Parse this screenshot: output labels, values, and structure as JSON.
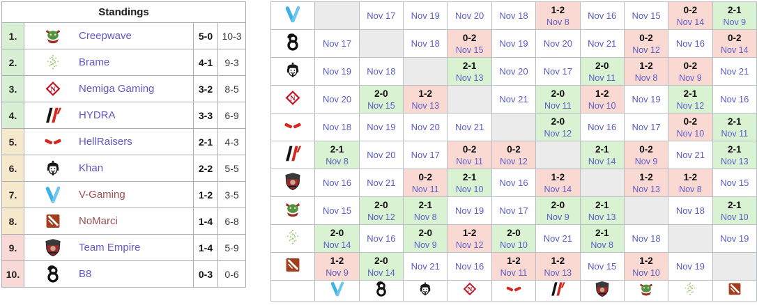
{
  "colors": {
    "win_bg": "#d9f2d1",
    "loss_bg": "#fbd9d3",
    "self_bg": "#ebebeb",
    "zone_up": "#d9efd4",
    "zone_mid": "#f6e8ca",
    "zone_down": "#f8d9d6",
    "link_purple": "#6058c6",
    "link_red": "#a04e52",
    "date_link": "#5a5cc9"
  },
  "teams": {
    "v-gaming": {
      "name": "V-Gaming",
      "icon": "v-gaming-icon",
      "link_style": "red"
    },
    "b8": {
      "name": "B8",
      "icon": "b8-icon",
      "link_style": "purple"
    },
    "khan": {
      "name": "Khan",
      "icon": "khan-icon",
      "link_style": "purple"
    },
    "nemiga": {
      "name": "Nemiga Gaming",
      "icon": "nemiga-icon",
      "link_style": "purple"
    },
    "hellraisers": {
      "name": "HellRaisers",
      "icon": "hellraisers-icon",
      "link_style": "purple"
    },
    "hydra": {
      "name": "HYDRA",
      "icon": "hydra-icon",
      "link_style": "purple"
    },
    "team-empire": {
      "name": "Team Empire",
      "icon": "team-empire-icon",
      "link_style": "purple"
    },
    "creepwave": {
      "name": "Creepwave",
      "icon": "creepwave-icon",
      "link_style": "purple"
    },
    "brame": {
      "name": "Brame",
      "icon": "brame-icon",
      "link_style": "purple"
    },
    "nomarci": {
      "name": "NoMarci",
      "icon": "nomarci-icon",
      "link_style": "red"
    }
  },
  "standings": {
    "title": "Standings",
    "rows": [
      {
        "place": "1.",
        "team": "creepwave",
        "record": "5-0",
        "games": "10-3",
        "zone": "up"
      },
      {
        "place": "2.",
        "team": "brame",
        "record": "4-1",
        "games": "9-3",
        "zone": "up"
      },
      {
        "place": "3.",
        "team": "nemiga",
        "record": "3-2",
        "games": "8-5",
        "zone": "up"
      },
      {
        "place": "4.",
        "team": "hydra",
        "record": "3-3",
        "games": "6-9",
        "zone": "up"
      },
      {
        "place": "5.",
        "team": "hellraisers",
        "record": "2-1",
        "games": "4-3",
        "zone": "mid"
      },
      {
        "place": "6.",
        "team": "khan",
        "record": "2-2",
        "games": "5-5",
        "zone": "mid"
      },
      {
        "place": "7.",
        "team": "v-gaming",
        "record": "1-2",
        "games": "3-5",
        "zone": "mid"
      },
      {
        "place": "8.",
        "team": "nomarci",
        "record": "1-4",
        "games": "6-8",
        "zone": "mid"
      },
      {
        "place": "9.",
        "team": "team-empire",
        "record": "1-4",
        "games": "5-9",
        "zone": "down"
      },
      {
        "place": "10.",
        "team": "b8",
        "record": "0-3",
        "games": "0-6",
        "zone": "down"
      }
    ]
  },
  "crosstable": {
    "rows": [
      {
        "team": "v-gaming",
        "cells": [
          {
            "type": "self"
          },
          {
            "type": "scheduled",
            "date": "Nov 17"
          },
          {
            "type": "scheduled",
            "date": "Nov 19"
          },
          {
            "type": "scheduled",
            "date": "Nov 20"
          },
          {
            "type": "scheduled",
            "date": "Nov 18"
          },
          {
            "type": "loss",
            "score": "1-2",
            "date": "Nov 8"
          },
          {
            "type": "scheduled",
            "date": "Nov 16"
          },
          {
            "type": "scheduled",
            "date": "Nov 15"
          },
          {
            "type": "loss",
            "score": "0-2",
            "date": "Nov 14"
          },
          {
            "type": "win",
            "score": "2-1",
            "date": "Nov 9"
          }
        ]
      },
      {
        "team": "b8",
        "cells": [
          {
            "type": "scheduled",
            "date": "Nov 17"
          },
          {
            "type": "self"
          },
          {
            "type": "scheduled",
            "date": "Nov 18"
          },
          {
            "type": "loss",
            "score": "0-2",
            "date": "Nov 15"
          },
          {
            "type": "scheduled",
            "date": "Nov 19"
          },
          {
            "type": "scheduled",
            "date": "Nov 20"
          },
          {
            "type": "scheduled",
            "date": "Nov 21"
          },
          {
            "type": "loss",
            "score": "0-2",
            "date": "Nov 12"
          },
          {
            "type": "scheduled",
            "date": "Nov 16"
          },
          {
            "type": "loss",
            "score": "0-2",
            "date": "Nov 14"
          }
        ]
      },
      {
        "team": "khan",
        "cells": [
          {
            "type": "scheduled",
            "date": "Nov 19"
          },
          {
            "type": "scheduled",
            "date": "Nov 18"
          },
          {
            "type": "self"
          },
          {
            "type": "win",
            "score": "2-1",
            "date": "Nov 13"
          },
          {
            "type": "scheduled",
            "date": "Nov 20"
          },
          {
            "type": "scheduled",
            "date": "Nov 17"
          },
          {
            "type": "win",
            "score": "2-0",
            "date": "Nov 11"
          },
          {
            "type": "loss",
            "score": "1-2",
            "date": "Nov 8"
          },
          {
            "type": "loss",
            "score": "0-2",
            "date": "Nov 9"
          },
          {
            "type": "scheduled",
            "date": "Nov 21"
          }
        ]
      },
      {
        "team": "nemiga",
        "cells": [
          {
            "type": "scheduled",
            "date": "Nov 20"
          },
          {
            "type": "win",
            "score": "2-0",
            "date": "Nov 15"
          },
          {
            "type": "loss",
            "score": "1-2",
            "date": "Nov 13"
          },
          {
            "type": "self"
          },
          {
            "type": "scheduled",
            "date": "Nov 21"
          },
          {
            "type": "win",
            "score": "2-0",
            "date": "Nov 11"
          },
          {
            "type": "loss",
            "score": "1-2",
            "date": "Nov 10"
          },
          {
            "type": "scheduled",
            "date": "Nov 19"
          },
          {
            "type": "win",
            "score": "2-1",
            "date": "Nov 12"
          },
          {
            "type": "scheduled",
            "date": "Nov 16"
          }
        ]
      },
      {
        "team": "hellraisers",
        "cells": [
          {
            "type": "scheduled",
            "date": "Nov 18"
          },
          {
            "type": "scheduled",
            "date": "Nov 19"
          },
          {
            "type": "scheduled",
            "date": "Nov 20"
          },
          {
            "type": "scheduled",
            "date": "Nov 21"
          },
          {
            "type": "self"
          },
          {
            "type": "win",
            "score": "2-0",
            "date": "Nov 12"
          },
          {
            "type": "scheduled",
            "date": "Nov 16"
          },
          {
            "type": "scheduled",
            "date": "Nov 17"
          },
          {
            "type": "loss",
            "score": "0-2",
            "date": "Nov 10"
          },
          {
            "type": "win",
            "score": "2-1",
            "date": "Nov 11"
          }
        ]
      },
      {
        "team": "hydra",
        "cells": [
          {
            "type": "win",
            "score": "2-1",
            "date": "Nov 8"
          },
          {
            "type": "scheduled",
            "date": "Nov 20"
          },
          {
            "type": "scheduled",
            "date": "Nov 17"
          },
          {
            "type": "loss",
            "score": "0-2",
            "date": "Nov 11"
          },
          {
            "type": "loss",
            "score": "0-2",
            "date": "Nov 12"
          },
          {
            "type": "self"
          },
          {
            "type": "win",
            "score": "2-1",
            "date": "Nov 14"
          },
          {
            "type": "loss",
            "score": "0-2",
            "date": "Nov 9"
          },
          {
            "type": "scheduled",
            "date": "Nov 21"
          },
          {
            "type": "win",
            "score": "2-1",
            "date": "Nov 13"
          }
        ]
      },
      {
        "team": "team-empire",
        "cells": [
          {
            "type": "scheduled",
            "date": "Nov 16"
          },
          {
            "type": "scheduled",
            "date": "Nov 21"
          },
          {
            "type": "loss",
            "score": "0-2",
            "date": "Nov 11"
          },
          {
            "type": "win",
            "score": "2-1",
            "date": "Nov 10"
          },
          {
            "type": "scheduled",
            "date": "Nov 16"
          },
          {
            "type": "loss",
            "score": "1-2",
            "date": "Nov 14"
          },
          {
            "type": "self"
          },
          {
            "type": "loss",
            "score": "1-2",
            "date": "Nov 13"
          },
          {
            "type": "loss",
            "score": "1-2",
            "date": "Nov 8"
          },
          {
            "type": "scheduled",
            "date": "Nov 15"
          }
        ]
      },
      {
        "team": "creepwave",
        "cells": [
          {
            "type": "scheduled",
            "date": "Nov 15"
          },
          {
            "type": "win",
            "score": "2-0",
            "date": "Nov 12"
          },
          {
            "type": "win",
            "score": "2-1",
            "date": "Nov 8"
          },
          {
            "type": "scheduled",
            "date": "Nov 19"
          },
          {
            "type": "scheduled",
            "date": "Nov 17"
          },
          {
            "type": "win",
            "score": "2-0",
            "date": "Nov 9"
          },
          {
            "type": "win",
            "score": "2-1",
            "date": "Nov 13"
          },
          {
            "type": "self"
          },
          {
            "type": "scheduled",
            "date": "Nov 18"
          },
          {
            "type": "win",
            "score": "2-1",
            "date": "Nov 10"
          }
        ]
      },
      {
        "team": "brame",
        "cells": [
          {
            "type": "win",
            "score": "2-0",
            "date": "Nov 14"
          },
          {
            "type": "scheduled",
            "date": "Nov 16"
          },
          {
            "type": "win",
            "score": "2-0",
            "date": "Nov 9"
          },
          {
            "type": "loss",
            "score": "1-2",
            "date": "Nov 12"
          },
          {
            "type": "win",
            "score": "2-0",
            "date": "Nov 10"
          },
          {
            "type": "scheduled",
            "date": "Nov 21"
          },
          {
            "type": "win",
            "score": "2-1",
            "date": "Nov 8"
          },
          {
            "type": "scheduled",
            "date": "Nov 18"
          },
          {
            "type": "self"
          },
          {
            "type": "scheduled",
            "date": "Nov 19"
          }
        ]
      },
      {
        "team": "nomarci",
        "cells": [
          {
            "type": "loss",
            "score": "1-2",
            "date": "Nov 9"
          },
          {
            "type": "win",
            "score": "2-0",
            "date": "Nov 14"
          },
          {
            "type": "scheduled",
            "date": "Nov 21"
          },
          {
            "type": "scheduled",
            "date": "Nov 16"
          },
          {
            "type": "loss",
            "score": "1-2",
            "date": "Nov 11"
          },
          {
            "type": "loss",
            "score": "1-2",
            "date": "Nov 13"
          },
          {
            "type": "scheduled",
            "date": "Nov 15"
          },
          {
            "type": "loss",
            "score": "1-2",
            "date": "Nov 10"
          },
          {
            "type": "scheduled",
            "date": "Nov 19"
          },
          {
            "type": "self"
          }
        ]
      }
    ]
  }
}
